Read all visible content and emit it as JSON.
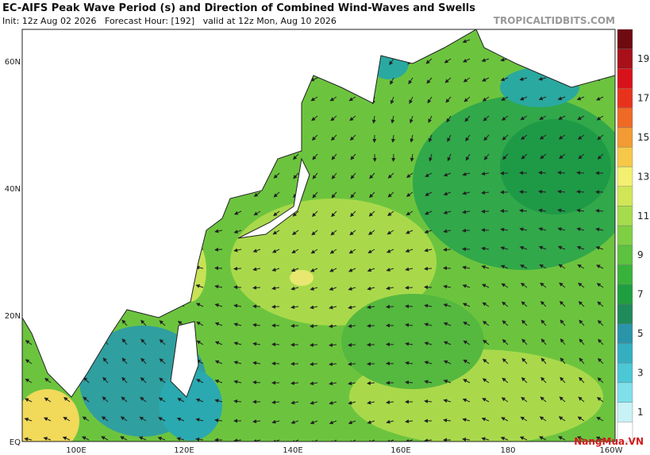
{
  "header": {
    "title": "EC-AIFS Peak Wave Period (s) and Direction of Combined Wind-Waves and Swells",
    "subtitle": "Init: 12z Aug 02 2026   Forecast Hour: [192]   valid at 12z Mon, Aug 10 2026",
    "source": "TROPICALTIDBITS.COM"
  },
  "map": {
    "lat_labels": [
      "60N",
      "40N",
      "20N",
      "EQ"
    ],
    "lon_labels": [
      "100E",
      "120E",
      "140E",
      "160E",
      "180",
      "160W"
    ]
  },
  "colorbar": {
    "labels": [
      "19",
      "17",
      "15",
      "13",
      "11",
      "9",
      "7",
      "5",
      "3",
      "1"
    ]
  },
  "logo": "NangMua.VN"
}
